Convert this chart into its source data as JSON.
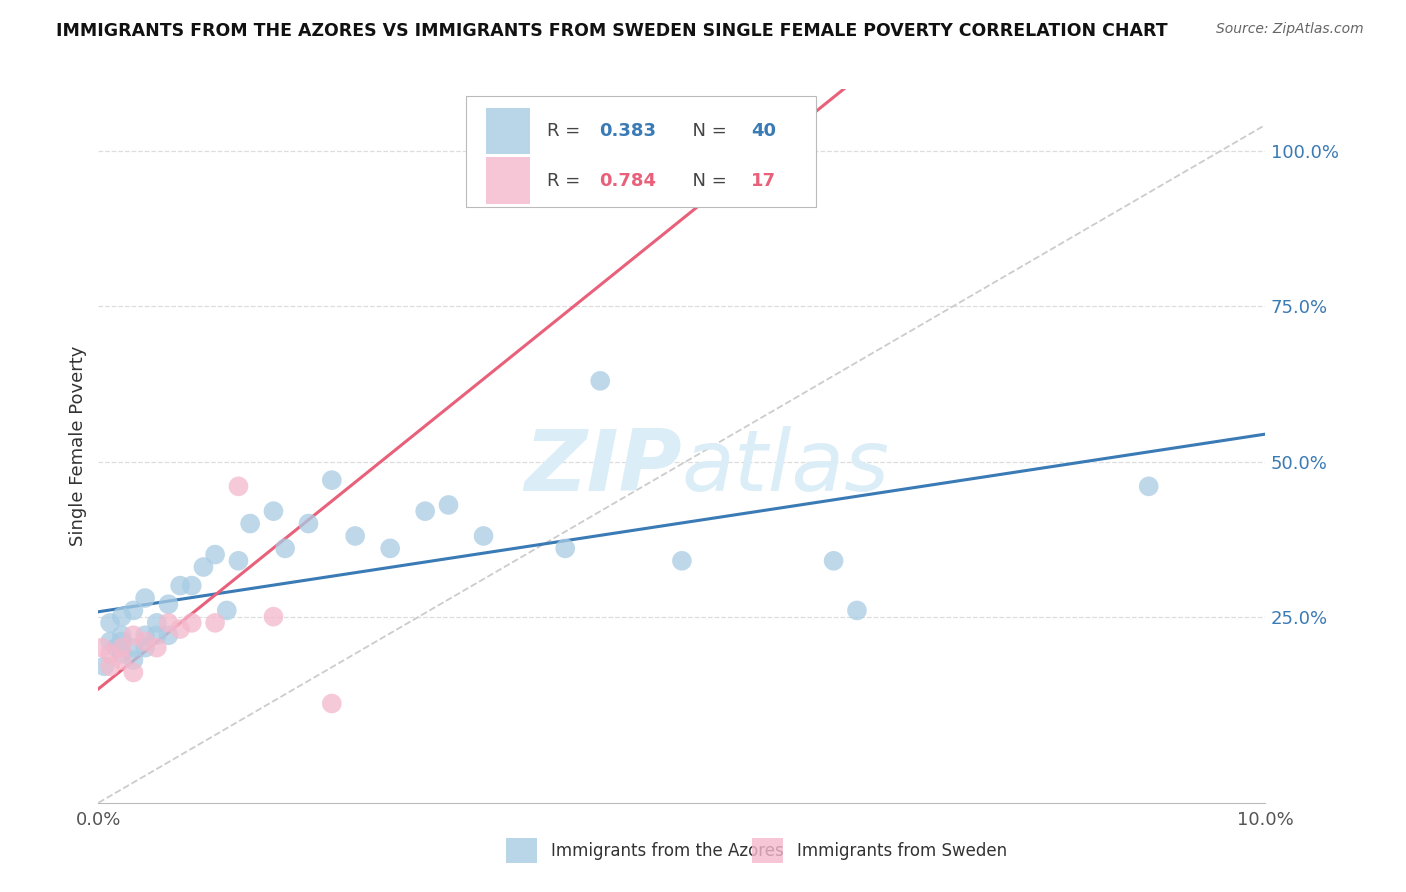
{
  "title": "IMMIGRANTS FROM THE AZORES VS IMMIGRANTS FROM SWEDEN SINGLE FEMALE POVERTY CORRELATION CHART",
  "source": "Source: ZipAtlas.com",
  "ylabel": "Single Female Poverty",
  "legend_azores": "Immigrants from the Azores",
  "legend_sweden": "Immigrants from Sweden",
  "R_azores": 0.383,
  "N_azores": 40,
  "R_sweden": 0.784,
  "N_sweden": 17,
  "azores_color": "#a8cce4",
  "sweden_color": "#f4b8cc",
  "azores_line_color": "#3a7ab5",
  "sweden_line_color": "#e8607a",
  "ref_line_color": "#cccccc",
  "background_color": "#ffffff",
  "grid_color": "#dddddd",
  "watermark_color": "#dbeef8",
  "xlim": [
    0.0,
    0.1
  ],
  "ylim": [
    -0.05,
    1.1
  ],
  "right_ytick_vals": [
    0.0,
    0.25,
    0.5,
    0.75,
    1.0
  ],
  "right_ytick_labels": [
    "",
    "25.0%",
    "50.0%",
    "75.0%",
    "100.0%"
  ],
  "xtick_vals": [
    0.0,
    0.1
  ],
  "xtick_labels": [
    "0.0%",
    "10.0%"
  ],
  "azores_x": [
    0.0005,
    0.001,
    0.001,
    0.0015,
    0.002,
    0.002,
    0.002,
    0.002,
    0.003,
    0.003,
    0.003,
    0.004,
    0.004,
    0.004,
    0.005,
    0.005,
    0.006,
    0.006,
    0.007,
    0.008,
    0.009,
    0.01,
    0.011,
    0.012,
    0.013,
    0.015,
    0.016,
    0.018,
    0.02,
    0.022,
    0.025,
    0.028,
    0.03,
    0.033,
    0.04,
    0.043,
    0.05,
    0.063,
    0.065,
    0.09
  ],
  "azores_y": [
    0.17,
    0.21,
    0.24,
    0.2,
    0.19,
    0.21,
    0.25,
    0.22,
    0.2,
    0.18,
    0.26,
    0.22,
    0.2,
    0.28,
    0.22,
    0.24,
    0.22,
    0.27,
    0.3,
    0.3,
    0.33,
    0.35,
    0.26,
    0.34,
    0.4,
    0.42,
    0.36,
    0.4,
    0.47,
    0.38,
    0.36,
    0.42,
    0.43,
    0.38,
    0.36,
    0.63,
    0.34,
    0.34,
    0.26,
    0.46
  ],
  "sweden_x": [
    0.0003,
    0.001,
    0.001,
    0.002,
    0.002,
    0.003,
    0.003,
    0.004,
    0.005,
    0.006,
    0.007,
    0.008,
    0.01,
    0.012,
    0.015,
    0.02,
    0.048
  ],
  "sweden_y": [
    0.2,
    0.17,
    0.19,
    0.18,
    0.2,
    0.22,
    0.16,
    0.21,
    0.2,
    0.24,
    0.23,
    0.24,
    0.24,
    0.46,
    0.25,
    0.11,
    1.0
  ]
}
